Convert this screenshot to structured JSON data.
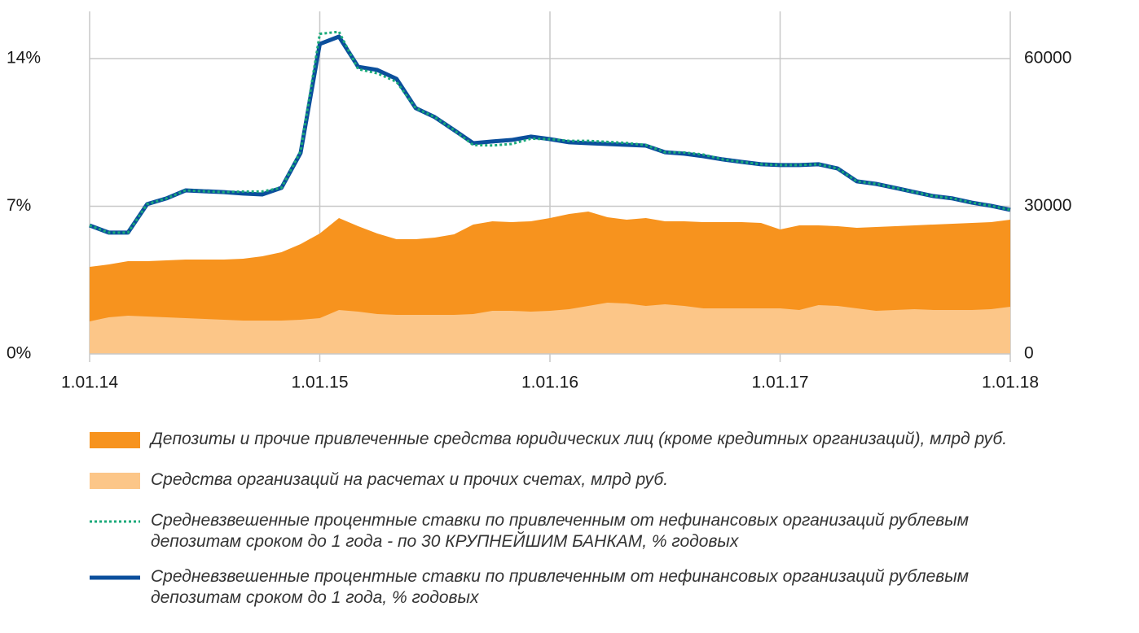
{
  "chart_data": {
    "type": "area-line",
    "categories": [
      "1.01.14",
      null,
      null,
      null,
      null,
      null,
      null,
      null,
      null,
      null,
      null,
      null,
      "1.01.15",
      null,
      null,
      null,
      null,
      null,
      null,
      null,
      null,
      null,
      null,
      null,
      "1.01.16",
      null,
      null,
      null,
      null,
      null,
      null,
      null,
      null,
      null,
      null,
      null,
      "1.01.17",
      null,
      null,
      null,
      null,
      null,
      null,
      null,
      null,
      null,
      null,
      null,
      "1.01.18"
    ],
    "ylim": [
      0,
      16.1
    ],
    "yticks": [
      {
        "value": 0,
        "label": "0%"
      },
      {
        "value": 7,
        "label": "7%"
      },
      {
        "value": 14,
        "label": "14%"
      }
    ],
    "y2lim": [
      0,
      69000
    ],
    "y2ticks": [
      0,
      30000,
      60000
    ],
    "grid": true,
    "series": [
      {
        "name": "Депозиты и прочие привлеченные средства юридических лиц (кроме кредитных организаций), млрд руб.",
        "type": "area",
        "axis": "y2",
        "color": "#f7931e",
        "values": [
          17686,
          18182,
          18843,
          18843,
          19008,
          19174,
          19174,
          19174,
          19339,
          19835,
          20661,
          22314,
          24463,
          27603,
          25950,
          24463,
          23306,
          23306,
          23636,
          24298,
          26281,
          26942,
          26777,
          26942,
          27603,
          28430,
          28926,
          27769,
          27273,
          27603,
          26942,
          26942,
          26777,
          26777,
          26777,
          26612,
          25289,
          26116,
          26116,
          25950,
          25620,
          25785,
          25950,
          26116,
          26281,
          26446,
          26612,
          26777,
          27273
        ]
      },
      {
        "name": "Средства организаций на расчетах и прочих счетах, млрд руб.",
        "type": "area",
        "axis": "y2",
        "color": "#fcc688",
        "values": [
          6612,
          7438,
          7769,
          7603,
          7438,
          7273,
          7107,
          6942,
          6777,
          6777,
          6777,
          6942,
          7273,
          8926,
          8595,
          8099,
          7934,
          7934,
          7934,
          7934,
          8099,
          8760,
          8760,
          8595,
          8760,
          9091,
          9752,
          10413,
          10248,
          9752,
          10083,
          9752,
          9256,
          9256,
          9256,
          9256,
          9256,
          8926,
          9917,
          9752,
          9256,
          8760,
          8926,
          9091,
          8926,
          8926,
          8926,
          9091,
          9587
        ]
      },
      {
        "name": "Средневзвешенные процентные ставки по привлеченным от нефинансовых организаций рублевым депозитам сроком до 1 года - по 30 КРУПНЕЙШИМ БАНКАМ, % годовых",
        "type": "line",
        "dash": "dotted",
        "color": "#1aaa7a",
        "values": [
          6.09,
          5.75,
          5.75,
          7.1,
          7.37,
          7.75,
          7.71,
          7.67,
          7.7,
          7.7,
          7.87,
          9.6,
          15.17,
          15.27,
          13.5,
          13.3,
          12.9,
          11.65,
          11.22,
          10.61,
          9.9,
          9.88,
          9.95,
          10.2,
          10.18,
          10.1,
          10.1,
          10.05,
          10.0,
          9.9,
          9.56,
          9.55,
          9.45,
          9.22,
          9.1,
          8.99,
          8.95,
          8.95,
          8.99,
          8.79,
          8.18,
          8.06,
          7.87,
          7.67,
          7.48,
          7.37,
          7.17,
          7.02,
          6.83
        ]
      },
      {
        "name": "Средневзвешенные процентные ставки по привлеченным от нефинансовых организаций рублевым депозитам сроком до 1 года, % годовых",
        "type": "line",
        "dash": "solid",
        "color": "#0b4f9c",
        "values": [
          6.09,
          5.75,
          5.75,
          7.1,
          7.37,
          7.75,
          7.71,
          7.67,
          7.6,
          7.56,
          7.87,
          9.53,
          14.69,
          15.04,
          13.61,
          13.46,
          13.04,
          11.65,
          11.22,
          10.61,
          9.99,
          10.07,
          10.14,
          10.3,
          10.18,
          10.03,
          9.99,
          9.95,
          9.91,
          9.87,
          9.56,
          9.49,
          9.37,
          9.22,
          9.1,
          8.99,
          8.95,
          8.95,
          8.99,
          8.79,
          8.18,
          8.06,
          7.87,
          7.67,
          7.48,
          7.37,
          7.17,
          7.02,
          6.83
        ]
      }
    ]
  }
}
